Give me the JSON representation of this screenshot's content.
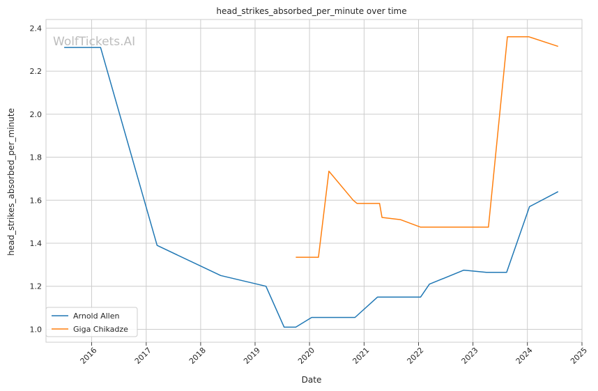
{
  "watermark": "WolfTickets.AI",
  "chart_data": {
    "type": "line",
    "title": "head_strikes_absorbed_per_minute over time",
    "xlabel": "Date",
    "ylabel": "head_strikes_absorbed_per_minute",
    "xlim": [
      "2015-03-01",
      "2025-01-01"
    ],
    "ylim": [
      0.94,
      2.44
    ],
    "x_ticks": [
      "2016",
      "2017",
      "2018",
      "2019",
      "2020",
      "2021",
      "2022",
      "2023",
      "2024",
      "2025"
    ],
    "y_ticks": [
      "1.0",
      "1.2",
      "1.4",
      "1.6",
      "1.8",
      "2.0",
      "2.2",
      "2.4"
    ],
    "grid": true,
    "legend": "lower-left",
    "series": [
      {
        "name": "Arnold Allen",
        "color": "#1f77b4",
        "points": [
          [
            "2015-07-01",
            2.31
          ],
          [
            "2016-03-01",
            2.31
          ],
          [
            "2017-03-15",
            1.39
          ],
          [
            "2018-05-15",
            1.25
          ],
          [
            "2019-03-15",
            1.2
          ],
          [
            "2019-07-15",
            1.01
          ],
          [
            "2019-10-01",
            1.01
          ],
          [
            "2020-01-15",
            1.055
          ],
          [
            "2020-11-01",
            1.055
          ],
          [
            "2021-04-01",
            1.15
          ],
          [
            "2022-01-15",
            1.15
          ],
          [
            "2022-03-15",
            1.21
          ],
          [
            "2022-11-01",
            1.275
          ],
          [
            "2023-04-01",
            1.265
          ],
          [
            "2023-08-15",
            1.265
          ],
          [
            "2024-01-15",
            1.57
          ],
          [
            "2024-07-25",
            1.64
          ]
        ]
      },
      {
        "name": "Giga Chikadze",
        "color": "#ff7f0e",
        "points": [
          [
            "2019-10-01",
            1.335
          ],
          [
            "2020-03-01",
            1.335
          ],
          [
            "2020-05-10",
            1.735
          ],
          [
            "2020-10-20",
            1.6
          ],
          [
            "2020-11-15",
            1.585
          ],
          [
            "2021-04-15",
            1.585
          ],
          [
            "2021-05-01",
            1.52
          ],
          [
            "2021-09-01",
            1.51
          ],
          [
            "2022-01-15",
            1.475
          ],
          [
            "2023-04-15",
            1.475
          ],
          [
            "2023-08-20",
            2.36
          ],
          [
            "2024-01-10",
            2.36
          ],
          [
            "2024-07-25",
            2.315
          ]
        ]
      }
    ]
  }
}
